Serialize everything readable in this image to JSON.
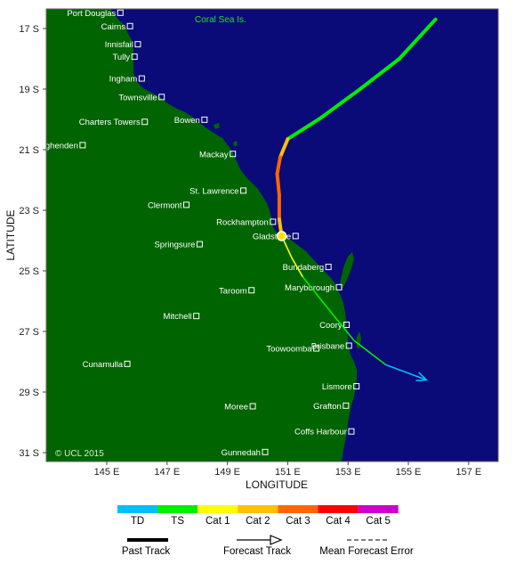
{
  "map": {
    "credit": "© UCL 2015",
    "sea_label": "Coral Sea Is.",
    "x_axis_title": "LONGITUDE",
    "y_axis_title": "LATITUDE",
    "lon_ticks": [
      {
        "lon": 145,
        "label": "145 E"
      },
      {
        "lon": 147,
        "label": "147 E"
      },
      {
        "lon": 149,
        "label": "149 E"
      },
      {
        "lon": 151,
        "label": "151 E"
      },
      {
        "lon": 153,
        "label": "153 E"
      },
      {
        "lon": 155,
        "label": "155 E"
      },
      {
        "lon": 157,
        "label": "157 E"
      }
    ],
    "lat_ticks": [
      {
        "lat": -17,
        "label": "17 S"
      },
      {
        "lat": -19,
        "label": "19 S"
      },
      {
        "lat": -21,
        "label": "21 S"
      },
      {
        "lat": -23,
        "label": "23 S"
      },
      {
        "lat": -25,
        "label": "25 S"
      },
      {
        "lat": -27,
        "label": "27 S"
      },
      {
        "lat": -29,
        "label": "29 S"
      },
      {
        "lat": -31,
        "label": "31 S"
      }
    ],
    "colors": {
      "land": "#006400",
      "sea": "#0a0a78",
      "town_marker": "#ffffff",
      "TD": "#00bfff",
      "TS": "#00ee00",
      "Cat 1": "#ffff00",
      "Cat 2": "#ffc000",
      "Cat 3": "#ff6600",
      "Cat 4": "#ff0000",
      "Cat 5": "#cc00cc"
    },
    "towns": [
      {
        "name": "Port Douglas",
        "lon": 145.45,
        "lat": -16.48
      },
      {
        "name": "Cairns",
        "lon": 145.77,
        "lat": -16.92
      },
      {
        "name": "Innisfail",
        "lon": 146.03,
        "lat": -17.52
      },
      {
        "name": "Tully",
        "lon": 145.92,
        "lat": -17.93
      },
      {
        "name": "Ingham",
        "lon": 146.16,
        "lat": -18.65
      },
      {
        "name": "Townsville",
        "lon": 146.82,
        "lat": -19.26
      },
      {
        "name": "Charters Towers",
        "lon": 146.26,
        "lat": -20.08
      },
      {
        "name": "Bowen",
        "lon": 148.24,
        "lat": -20.01
      },
      {
        "name": "Hughenden",
        "lon": 144.2,
        "lat": -20.85
      },
      {
        "name": "Mackay",
        "lon": 149.18,
        "lat": -21.14
      },
      {
        "name": "St. Lawrence",
        "lon": 149.53,
        "lat": -22.35
      },
      {
        "name": "Clermont",
        "lon": 147.64,
        "lat": -22.82
      },
      {
        "name": "Rockhampton",
        "lon": 150.51,
        "lat": -23.38
      },
      {
        "name": "Gladstone",
        "lon": 151.26,
        "lat": -23.85
      },
      {
        "name": "Springsure",
        "lon": 148.08,
        "lat": -24.12
      },
      {
        "name": "Bundaberg",
        "lon": 152.35,
        "lat": -24.87
      },
      {
        "name": "Maryborough",
        "lon": 152.7,
        "lat": -25.54
      },
      {
        "name": "Taroom",
        "lon": 149.8,
        "lat": -25.64
      },
      {
        "name": "Mitchell",
        "lon": 147.97,
        "lat": -26.49
      },
      {
        "name": "Coory",
        "lon": 152.95,
        "lat": -26.78
      },
      {
        "name": "Brisbane",
        "lon": 153.03,
        "lat": -27.47
      },
      {
        "name": "Toowoomba",
        "lon": 151.95,
        "lat": -27.56
      },
      {
        "name": "Cunamulla",
        "lon": 145.68,
        "lat": -28.07
      },
      {
        "name": "Lismore",
        "lon": 153.28,
        "lat": -28.81
      },
      {
        "name": "Moree",
        "lon": 149.84,
        "lat": -29.47
      },
      {
        "name": "Grafton",
        "lon": 152.93,
        "lat": -29.45
      },
      {
        "name": "Coffs Harbour",
        "lon": 153.11,
        "lat": -30.3
      },
      {
        "name": "Gunnedah",
        "lon": 150.25,
        "lat": -30.98
      }
    ],
    "past_track": [
      {
        "lon": 155.9,
        "lat": -16.7,
        "cat": "TS"
      },
      {
        "lon": 154.7,
        "lat": -18.0,
        "cat": "TS"
      },
      {
        "lon": 153.4,
        "lat": -19.0,
        "cat": "TS"
      },
      {
        "lon": 152.1,
        "lat": -19.95,
        "cat": "TS"
      },
      {
        "lon": 151.0,
        "lat": -20.65,
        "cat": "TS"
      },
      {
        "lon": 150.75,
        "lat": -21.25,
        "cat": "Cat 2"
      },
      {
        "lon": 150.65,
        "lat": -21.8,
        "cat": "Cat 3"
      },
      {
        "lon": 150.72,
        "lat": -22.5,
        "cat": "Cat 3"
      },
      {
        "lon": 150.72,
        "lat": -23.3,
        "cat": "Cat 3"
      },
      {
        "lon": 150.8,
        "lat": -23.85,
        "cat": "Cat 2"
      }
    ],
    "current_position": {
      "lon": 150.8,
      "lat": -23.85,
      "cat": "Cat 2"
    },
    "forecast_track": [
      {
        "lon": 150.8,
        "lat": -23.85,
        "cat": "Cat 1"
      },
      {
        "lon": 151.15,
        "lat": -24.6,
        "cat": "Cat 1"
      },
      {
        "lon": 151.5,
        "lat": -25.2,
        "cat": "TS"
      },
      {
        "lon": 152.3,
        "lat": -26.2,
        "cat": "TS"
      },
      {
        "lon": 153.2,
        "lat": -27.3,
        "cat": "TS"
      },
      {
        "lon": 154.25,
        "lat": -28.1,
        "cat": "TD"
      },
      {
        "lon": 155.6,
        "lat": -28.6,
        "cat": "TD"
      }
    ]
  },
  "legend": {
    "categories": [
      "TD",
      "TS",
      "Cat 1",
      "Cat 2",
      "Cat 3",
      "Cat 4",
      "Cat 5"
    ],
    "past_track_label": "Past Track",
    "forecast_track_label": "Forecast Track",
    "error_label": "Mean Forecast Error"
  }
}
